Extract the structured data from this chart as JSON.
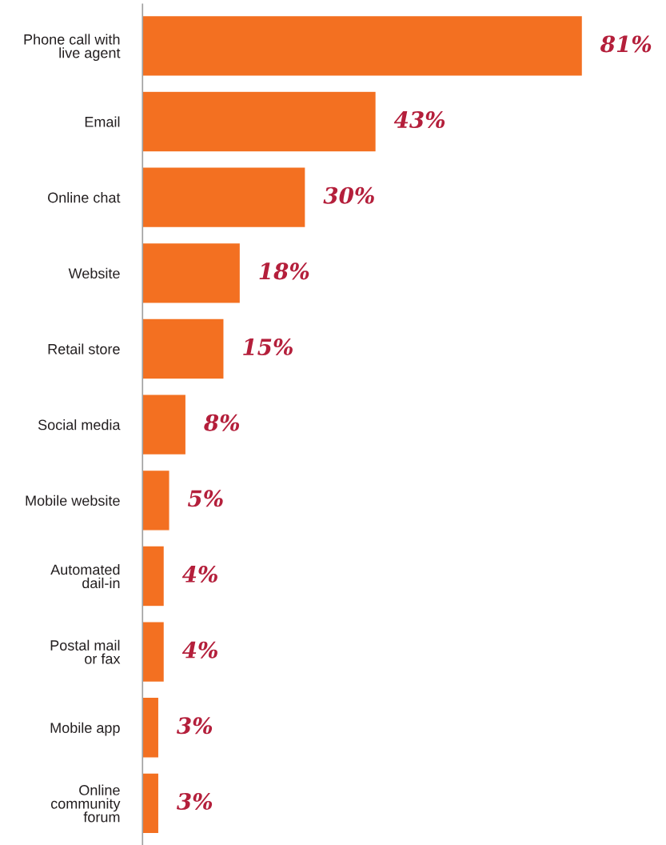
{
  "chart_data": {
    "type": "bar",
    "orientation": "horizontal",
    "categories": [
      "Phone call with\nlive agent",
      "Email",
      "Online chat",
      "Website",
      "Retail store",
      "Social media",
      "Mobile website",
      "Automated\ndail-in",
      "Postal mail\nor fax",
      "Mobile app",
      "Online\ncommunity\nforum"
    ],
    "values": [
      81,
      43,
      30,
      18,
      15,
      8,
      5,
      4,
      4,
      3,
      3
    ],
    "value_labels": [
      "81%",
      "43%",
      "30%",
      "18%",
      "15%",
      "8%",
      "5%",
      "4%",
      "4%",
      "3%",
      "3%"
    ],
    "color": "#f37021"
  }
}
